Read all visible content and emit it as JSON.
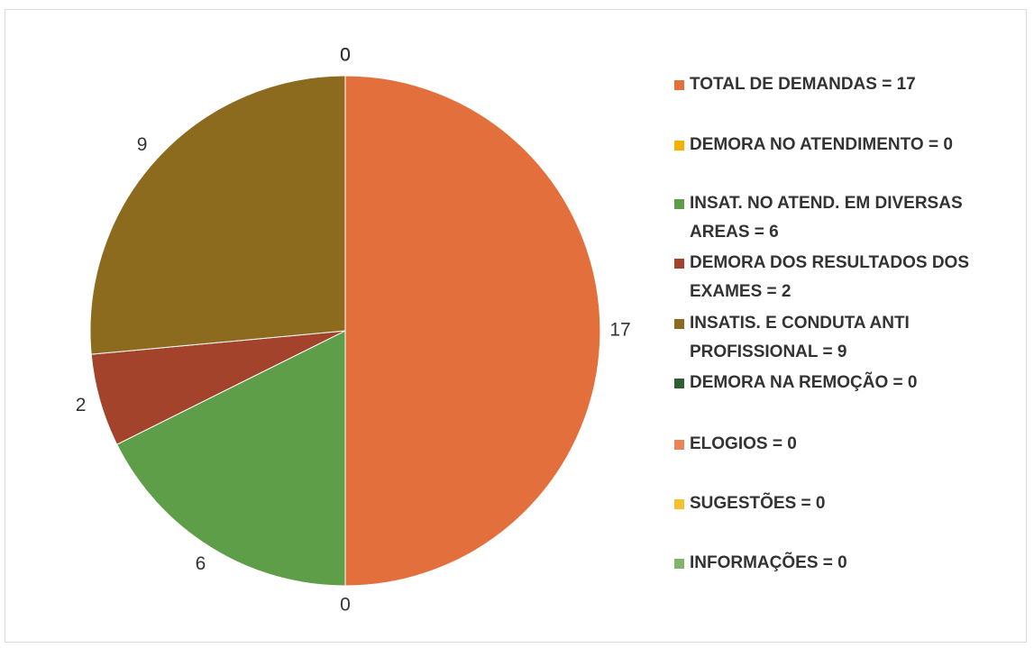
{
  "chart_data": {
    "type": "pie",
    "categories": [
      "TOTAL DE DEMANDAS = 17",
      "DEMORA NO ATENDIMENTO = 0",
      "INSAT. NO ATEND. EM DIVERSAS AREAS = 6",
      "DEMORA DOS RESULTADOS DOS EXAMES = 2",
      "INSATIS. E CONDUTA ANTI PROFISSIONAL = 9",
      "DEMORA NA REMOÇÃO = 0",
      "ELOGIOS = 0",
      "SUGESTÕES = 0",
      "INFORMAÇÕES = 0"
    ],
    "values": [
      17,
      0,
      6,
      2,
      9,
      0,
      0,
      0,
      0
    ],
    "colors": [
      "#e3703c",
      "#f4b000",
      "#5f9e48",
      "#a3432b",
      "#8c6b1f",
      "#2f5f30",
      "#e9845b",
      "#f6c02e",
      "#7fb56a"
    ],
    "legend": "right"
  }
}
